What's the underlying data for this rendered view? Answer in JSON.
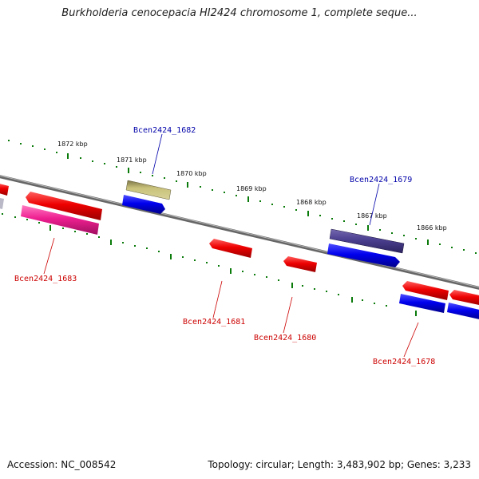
{
  "title": "Burkholderia cenocepacia HI2424 chromosome 1, complete seque...",
  "ticks": [
    {
      "label": "1872 kbp"
    },
    {
      "label": "1871 kbp"
    },
    {
      "label": "1870 kbp"
    },
    {
      "label": "1869 kbp"
    },
    {
      "label": "1868 kbp"
    },
    {
      "label": "1867 kbp"
    },
    {
      "label": "1866 kbp"
    }
  ],
  "genes": [
    {
      "label": "Bcen2424_1682",
      "color": "#0000aa"
    },
    {
      "label": "Bcen2424_1679",
      "color": "#0000aa"
    },
    {
      "label": "Bcen2424_1683",
      "color": "#cc0000"
    },
    {
      "label": "Bcen2424_1681",
      "color": "#cc0000"
    },
    {
      "label": "Bcen2424_1680",
      "color": "#cc0000"
    },
    {
      "label": "Bcen2424_1678",
      "color": "#cc0000"
    }
  ],
  "colors": {
    "forward_gene": "#0000ee",
    "reverse_gene": "#ee0000",
    "magenta_gene": "#ee1f90",
    "olive_gene": "#c2bd74",
    "purple_gene": "#4b3f8f",
    "backbone": "#8a8a8a",
    "tick_green": "#0a7a0a"
  },
  "footer": {
    "accession": "Accession: NC_008542",
    "summary": "Topology: circular; Length: 3,483,902 bp; Genes: 3,233"
  }
}
